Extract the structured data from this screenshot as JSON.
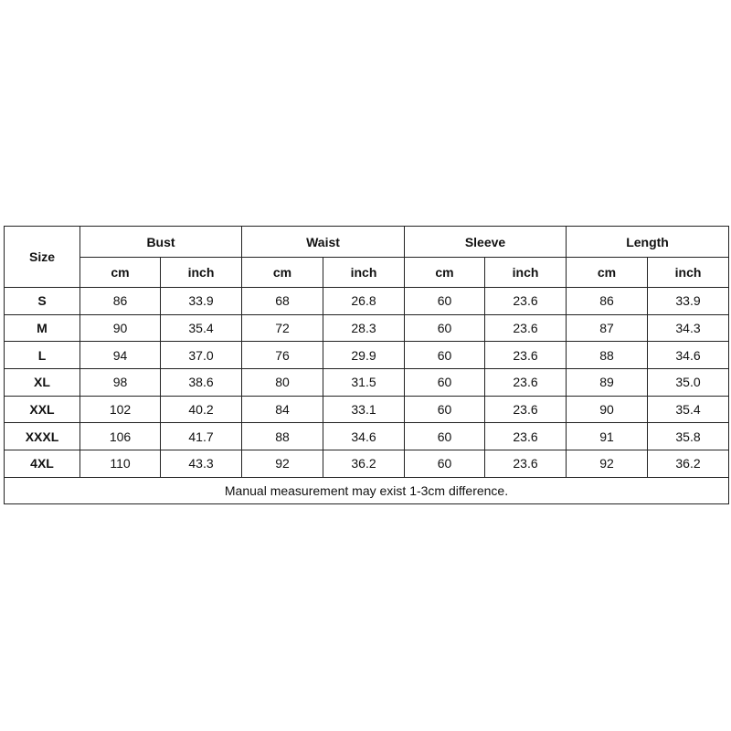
{
  "table": {
    "size_header": "Size",
    "groups": [
      "Bust",
      "Waist",
      "Sleeve",
      "Length"
    ],
    "units": [
      "cm",
      "inch"
    ],
    "rows": [
      {
        "size": "S",
        "values": [
          "86",
          "33.9",
          "68",
          "26.8",
          "60",
          "23.6",
          "86",
          "33.9"
        ]
      },
      {
        "size": "M",
        "values": [
          "90",
          "35.4",
          "72",
          "28.3",
          "60",
          "23.6",
          "87",
          "34.3"
        ]
      },
      {
        "size": "L",
        "values": [
          "94",
          "37.0",
          "76",
          "29.9",
          "60",
          "23.6",
          "88",
          "34.6"
        ]
      },
      {
        "size": "XL",
        "values": [
          "98",
          "38.6",
          "80",
          "31.5",
          "60",
          "23.6",
          "89",
          "35.0"
        ]
      },
      {
        "size": "XXL",
        "values": [
          "102",
          "40.2",
          "84",
          "33.1",
          "60",
          "23.6",
          "90",
          "35.4"
        ]
      },
      {
        "size": "XXXL",
        "values": [
          "106",
          "41.7",
          "88",
          "34.6",
          "60",
          "23.6",
          "91",
          "35.8"
        ]
      },
      {
        "size": "4XL",
        "values": [
          "110",
          "43.3",
          "92",
          "36.2",
          "60",
          "23.6",
          "92",
          "36.2"
        ]
      }
    ],
    "note": "Manual measurement may exist 1-3cm difference."
  }
}
